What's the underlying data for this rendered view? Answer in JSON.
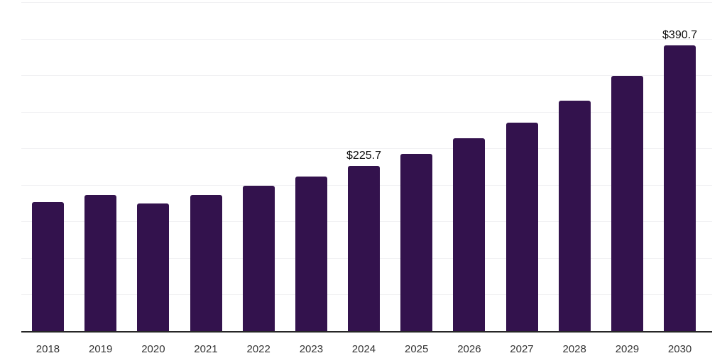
{
  "chart": {
    "colors": {
      "bar": "#33124d",
      "axis_line": "#262626",
      "gridline": "#f1f1f3",
      "tick_label": "#333333",
      "data_label": "#0d0d0d",
      "background": "#ffffff"
    }
  },
  "chart_data": {
    "type": "bar",
    "title": "",
    "xlabel": "",
    "ylabel": "",
    "categories": [
      "2018",
      "2019",
      "2020",
      "2021",
      "2022",
      "2023",
      "2024",
      "2025",
      "2026",
      "2027",
      "2028",
      "2029",
      "2030"
    ],
    "values": [
      177.0,
      186.0,
      175.0,
      186.0,
      198.5,
      211.0,
      225.7,
      242.5,
      263.5,
      285.5,
      315.0,
      349.5,
      390.7
    ],
    "data_labels": [
      {
        "category": "2024",
        "text": "$225.7"
      },
      {
        "category": "2030",
        "text": "$390.7"
      }
    ],
    "ylim": [
      0,
      450
    ],
    "gridline_step": 50,
    "grid": "horizontal-only",
    "y_axis_tick_labels": "none",
    "legend": "none"
  }
}
